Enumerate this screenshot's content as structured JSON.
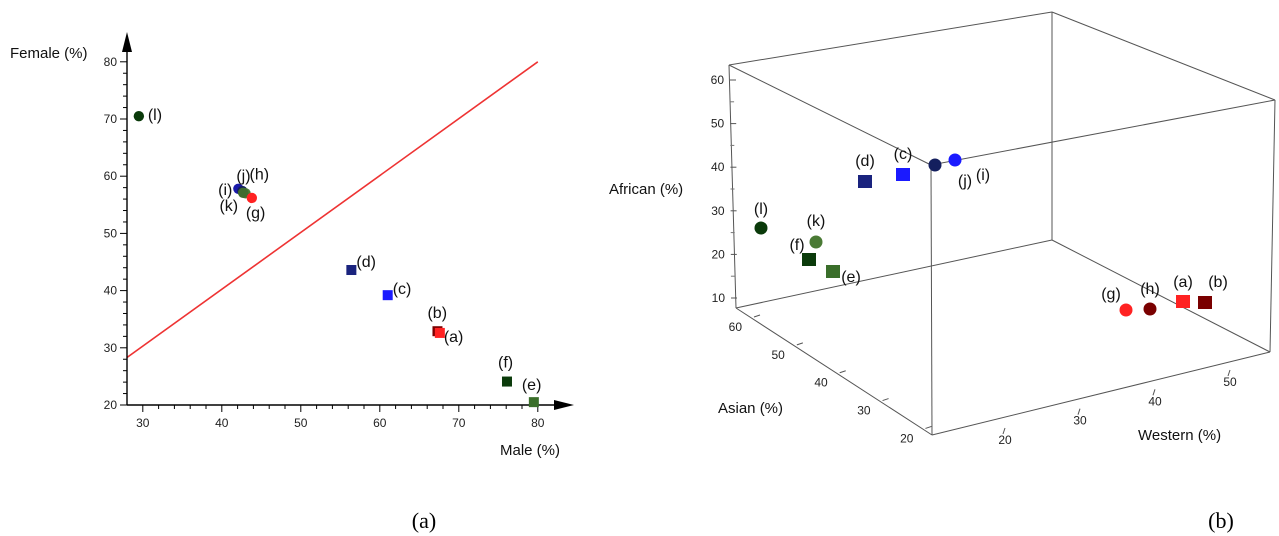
{
  "chart_data": [
    {
      "type": "scatter",
      "xlabel": "Male (%)",
      "ylabel": "Female (%)",
      "xlim": [
        28,
        82
      ],
      "ylim": [
        20,
        80
      ],
      "xticks": [
        30,
        40,
        50,
        60,
        70,
        80
      ],
      "yticks": [
        20,
        30,
        40,
        50,
        60,
        70,
        80
      ],
      "reference_line": {
        "from": [
          28,
          28.3
        ],
        "to": [
          80,
          80
        ],
        "color": "#ee3333"
      },
      "points": [
        {
          "label": "(l)",
          "x": 29.5,
          "y": 70.5,
          "shape": "circle",
          "color": "#0a3a0a"
        },
        {
          "label": "(i)",
          "x": 42.1,
          "y": 57.8,
          "shape": "circle",
          "color": "#1a1aaa"
        },
        {
          "label": "(j)",
          "x": 42.6,
          "y": 57.4,
          "shape": "circle",
          "color": "#141f5e"
        },
        {
          "label": "(h)",
          "x": 43.0,
          "y": 57.0,
          "shape": "circle",
          "color": "#4a7a35"
        },
        {
          "label": "(k)",
          "x": 42.7,
          "y": 57.1,
          "shape": "circle",
          "color": "#3e6b2e"
        },
        {
          "label": "(g)",
          "x": 43.8,
          "y": 56.2,
          "shape": "circle",
          "color": "#ff2222"
        },
        {
          "label": "(d)",
          "x": 56.4,
          "y": 43.6,
          "shape": "square",
          "color": "#1a237e"
        },
        {
          "label": "(c)",
          "x": 61.0,
          "y": 39.2,
          "shape": "square",
          "color": "#1a1aff"
        },
        {
          "label": "(b)",
          "x": 67.3,
          "y": 32.9,
          "shape": "square",
          "color": "#7a0000"
        },
        {
          "label": "(a)",
          "x": 67.6,
          "y": 32.6,
          "shape": "square",
          "color": "#ff2222"
        },
        {
          "label": "(f)",
          "x": 76.1,
          "y": 24.1,
          "shape": "square",
          "color": "#0b3b0b"
        },
        {
          "label": "(e)",
          "x": 79.5,
          "y": 20.5,
          "shape": "square",
          "color": "#3a6e2a"
        }
      ]
    },
    {
      "type": "scatter",
      "zlabel": "African (%)",
      "ylabel": "Asian (%)",
      "xlabel": "Western (%)",
      "zticks": [
        10,
        20,
        30,
        40,
        50,
        60
      ],
      "yticks": [
        20,
        30,
        40,
        50,
        60
      ],
      "xticks": [
        20,
        30,
        40,
        50
      ],
      "points": [
        {
          "label": "(d)",
          "shape": "square",
          "color": "#1a237e"
        },
        {
          "label": "(c)",
          "shape": "square",
          "color": "#1a1aff"
        },
        {
          "label": "(j)",
          "shape": "circle",
          "color": "#141f5e"
        },
        {
          "label": "(i)",
          "shape": "circle",
          "color": "#1a1aff"
        },
        {
          "label": "(l)",
          "shape": "circle",
          "color": "#0a3a0a"
        },
        {
          "label": "(k)",
          "shape": "circle",
          "color": "#4a7a35"
        },
        {
          "label": "(f)",
          "shape": "square",
          "color": "#0b3b0b"
        },
        {
          "label": "(e)",
          "shape": "square",
          "color": "#3a6e2a"
        },
        {
          "label": "(g)",
          "shape": "circle",
          "color": "#ff2222"
        },
        {
          "label": "(h)",
          "shape": "circle",
          "color": "#7a0000"
        },
        {
          "label": "(a)",
          "shape": "square",
          "color": "#ff2222"
        },
        {
          "label": "(b)",
          "shape": "square",
          "color": "#7a0000"
        }
      ]
    }
  ],
  "captions": {
    "left": "(a)",
    "right": "(b)"
  }
}
